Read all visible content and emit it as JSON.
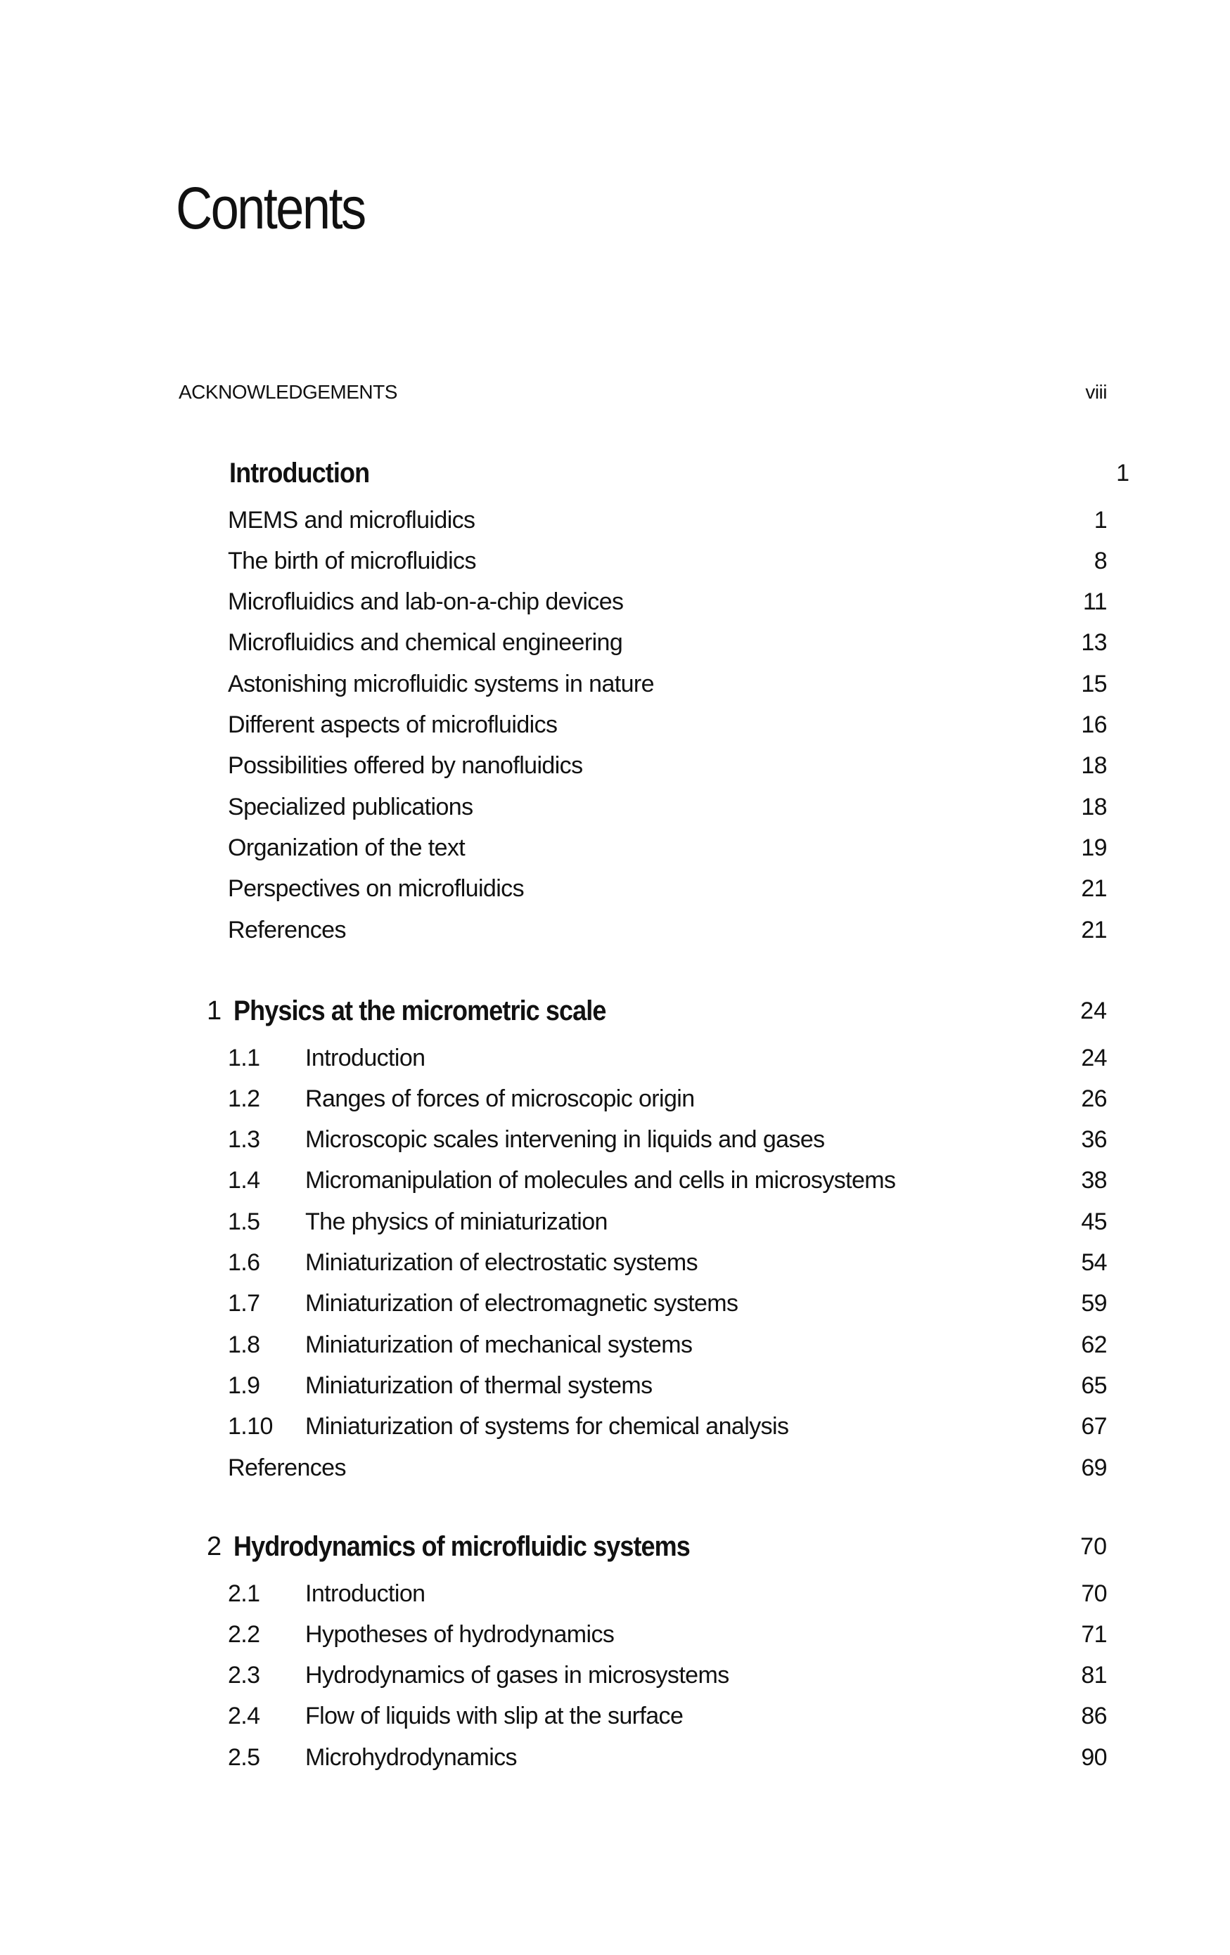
{
  "title": "Contents",
  "acknowledgements": {
    "label": "ACKNOWLEDGEMENTS",
    "page": "viii"
  },
  "chapters": [
    {
      "number": "",
      "title": "Introduction",
      "page": "1",
      "entries": [
        {
          "number": "",
          "title": "MEMS and microfluidics",
          "page": "1"
        },
        {
          "number": "",
          "title": "The birth of microfluidics",
          "page": "8"
        },
        {
          "number": "",
          "title": "Microfluidics and lab-on-a-chip devices",
          "page": "11"
        },
        {
          "number": "",
          "title": "Microfluidics and chemical engineering",
          "page": "13"
        },
        {
          "number": "",
          "title": "Astonishing microfluidic systems in nature",
          "page": "15"
        },
        {
          "number": "",
          "title": "Different aspects of microfluidics",
          "page": "16"
        },
        {
          "number": "",
          "title": "Possibilities offered by nanofluidics",
          "page": "18"
        },
        {
          "number": "",
          "title": "Specialized publications",
          "page": "18"
        },
        {
          "number": "",
          "title": "Organization of the text",
          "page": "19"
        },
        {
          "number": "",
          "title": "Perspectives on microfluidics",
          "page": "21"
        },
        {
          "number": "",
          "title": "References",
          "page": "21"
        }
      ]
    },
    {
      "number": "1",
      "title": "Physics at the micrometric scale",
      "page": "24",
      "entries": [
        {
          "number": "1.1",
          "title": "Introduction",
          "page": "24"
        },
        {
          "number": "1.2",
          "title": "Ranges of forces of microscopic origin",
          "page": "26"
        },
        {
          "number": "1.3",
          "title": "Microscopic scales intervening in liquids and gases",
          "page": "36"
        },
        {
          "number": "1.4",
          "title": "Micromanipulation of molecules and cells in microsystems",
          "page": "38"
        },
        {
          "number": "1.5",
          "title": "The physics of miniaturization",
          "page": "45"
        },
        {
          "number": "1.6",
          "title": "Miniaturization of electrostatic systems",
          "page": "54"
        },
        {
          "number": "1.7",
          "title": "Miniaturization of electromagnetic systems",
          "page": "59"
        },
        {
          "number": "1.8",
          "title": "Miniaturization of mechanical systems",
          "page": "62"
        },
        {
          "number": "1.9",
          "title": "Miniaturization of thermal systems",
          "page": "65"
        },
        {
          "number": "1.10",
          "title": "Miniaturization of systems for chemical analysis",
          "page": "67"
        },
        {
          "number": "",
          "title": "References",
          "page": "69"
        }
      ]
    },
    {
      "number": "2",
      "title": "Hydrodynamics of microfluidic systems",
      "page": "70",
      "entries": [
        {
          "number": "2.1",
          "title": "Introduction",
          "page": "70"
        },
        {
          "number": "2.2",
          "title": "Hypotheses of hydrodynamics",
          "page": "71"
        },
        {
          "number": "2.3",
          "title": "Hydrodynamics of gases in microsystems",
          "page": "81"
        },
        {
          "number": "2.4",
          "title": "Flow of liquids with slip at the surface",
          "page": "86"
        },
        {
          "number": "2.5",
          "title": "Microhydrodynamics",
          "page": "90"
        }
      ]
    }
  ]
}
